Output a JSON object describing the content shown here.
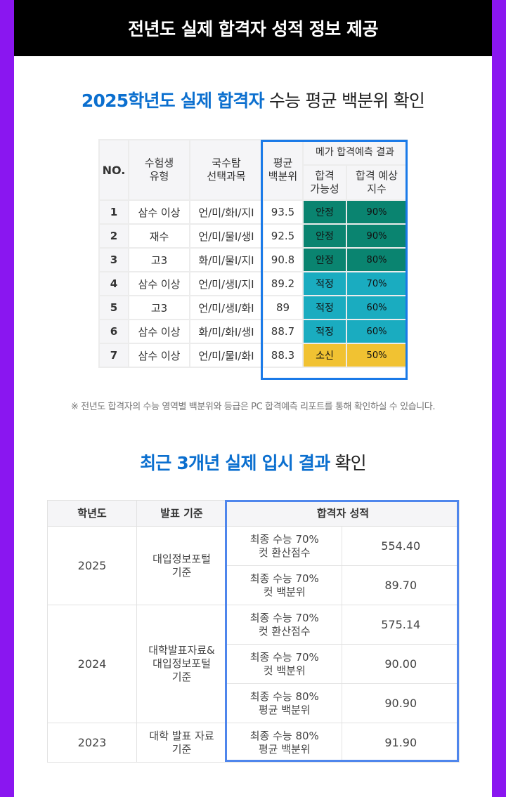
{
  "banner": {
    "title": "전년도 실제 합격자 성적 정보 제공"
  },
  "section1": {
    "title_highlight": "2025학년도 실제 합격자",
    "title_rest": " 수능 평균 백분위 확인",
    "table": {
      "headers": {
        "no": "NO.",
        "type_line1": "수험생",
        "type_line2": "유형",
        "subjects_line1": "국수탐",
        "subjects_line2": "선택과목",
        "avg_line1": "평균",
        "avg_line2": "백분위",
        "mega_group": "메가 합격예측 결과",
        "possibility_line1": "합격",
        "possibility_line2": "가능성",
        "index_line1": "합격 예상",
        "index_line2": "지수"
      },
      "rows": [
        {
          "no": "1",
          "type": "삼수 이상",
          "subjects": "언/미/화I/지I",
          "avg": "93.5",
          "possibility": "안정",
          "index": "90%",
          "color": "green"
        },
        {
          "no": "2",
          "type": "재수",
          "subjects": "언/미/물I/생I",
          "avg": "92.5",
          "possibility": "안정",
          "index": "90%",
          "color": "green"
        },
        {
          "no": "3",
          "type": "고3",
          "subjects": "화/미/물I/지I",
          "avg": "90.8",
          "possibility": "안정",
          "index": "80%",
          "color": "green"
        },
        {
          "no": "4",
          "type": "삼수 이상",
          "subjects": "언/미/생I/지I",
          "avg": "89.2",
          "possibility": "적정",
          "index": "70%",
          "color": "teal"
        },
        {
          "no": "5",
          "type": "고3",
          "subjects": "언/미/생I/화I",
          "avg": "89",
          "possibility": "적정",
          "index": "60%",
          "color": "teal"
        },
        {
          "no": "6",
          "type": "삼수 이상",
          "subjects": "화/미/화I/생I",
          "avg": "88.7",
          "possibility": "적정",
          "index": "60%",
          "color": "teal"
        },
        {
          "no": "7",
          "type": "삼수 이상",
          "subjects": "언/미/물I/화I",
          "avg": "88.3",
          "possibility": "소신",
          "index": "50%",
          "color": "yellow"
        }
      ]
    },
    "note": "※ 전년도 합격자의 수능 영역별 백분위와 등급은 PC 합격예측 리포트를 통해 확인하실 수 있습니다."
  },
  "section2": {
    "title_highlight": "최근 3개년 실제 입시 결과",
    "title_rest": " 확인",
    "table": {
      "headers": {
        "year": "학년도",
        "basis": "발표 기준",
        "scores": "합격자 성적"
      },
      "groups": [
        {
          "year": "2025",
          "basis_lines": [
            "대입정보포털",
            "기준"
          ],
          "rows": [
            {
              "label_line1": "최종 수능 70%",
              "label_line2": "컷 환산점수",
              "value": "554.40"
            },
            {
              "label_line1": "최종 수능 70%",
              "label_line2": "컷 백분위",
              "value": "89.70"
            }
          ]
        },
        {
          "year": "2024",
          "basis_lines": [
            "대학발표자료&",
            "대입정보포털",
            "기준"
          ],
          "rows": [
            {
              "label_line1": "최종 수능 70%",
              "label_line2": "컷 환산점수",
              "value": "575.14"
            },
            {
              "label_line1": "최종 수능 70%",
              "label_line2": "컷 백분위",
              "value": "90.00"
            },
            {
              "label_line1": "최종 수능 80%",
              "label_line2": "평균 백분위",
              "value": "90.90"
            }
          ]
        },
        {
          "year": "2023",
          "basis_lines": [
            "대학 발표 자료",
            "기준"
          ],
          "rows": [
            {
              "label_line1": "최종 수능 80%",
              "label_line2": "평균 백분위",
              "value": "91.90"
            }
          ]
        }
      ]
    }
  },
  "colors": {
    "side": "#8a16f0",
    "accent_blue": "#0b6fcf",
    "stable": "#0a8470",
    "proper": "#1aacc0",
    "reach": "#f1c232"
  }
}
